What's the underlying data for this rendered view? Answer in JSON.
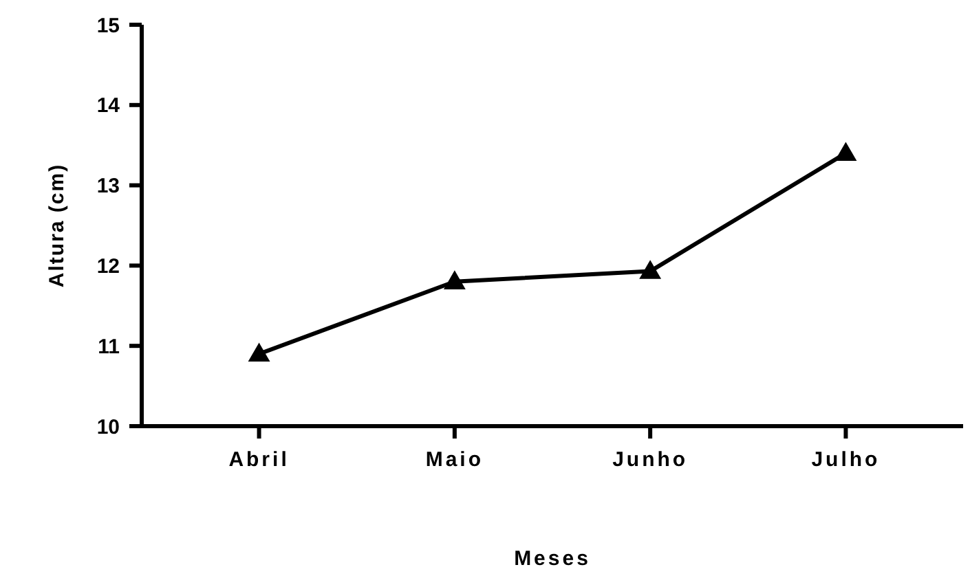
{
  "chart_data": {
    "type": "line",
    "xlabel": "Meses",
    "ylabel": "Altura (cm)",
    "categories": [
      "Abril",
      "Maio",
      "Junho",
      "Julho"
    ],
    "series": [
      {
        "color": "#000000",
        "values": [
          10.9,
          11.8,
          11.93,
          13.4
        ]
      }
    ],
    "ylim": [
      10,
      15
    ],
    "yticks": [
      10,
      11,
      12,
      13,
      14,
      15
    ],
    "marker": "triangle",
    "line_style": "solid"
  }
}
